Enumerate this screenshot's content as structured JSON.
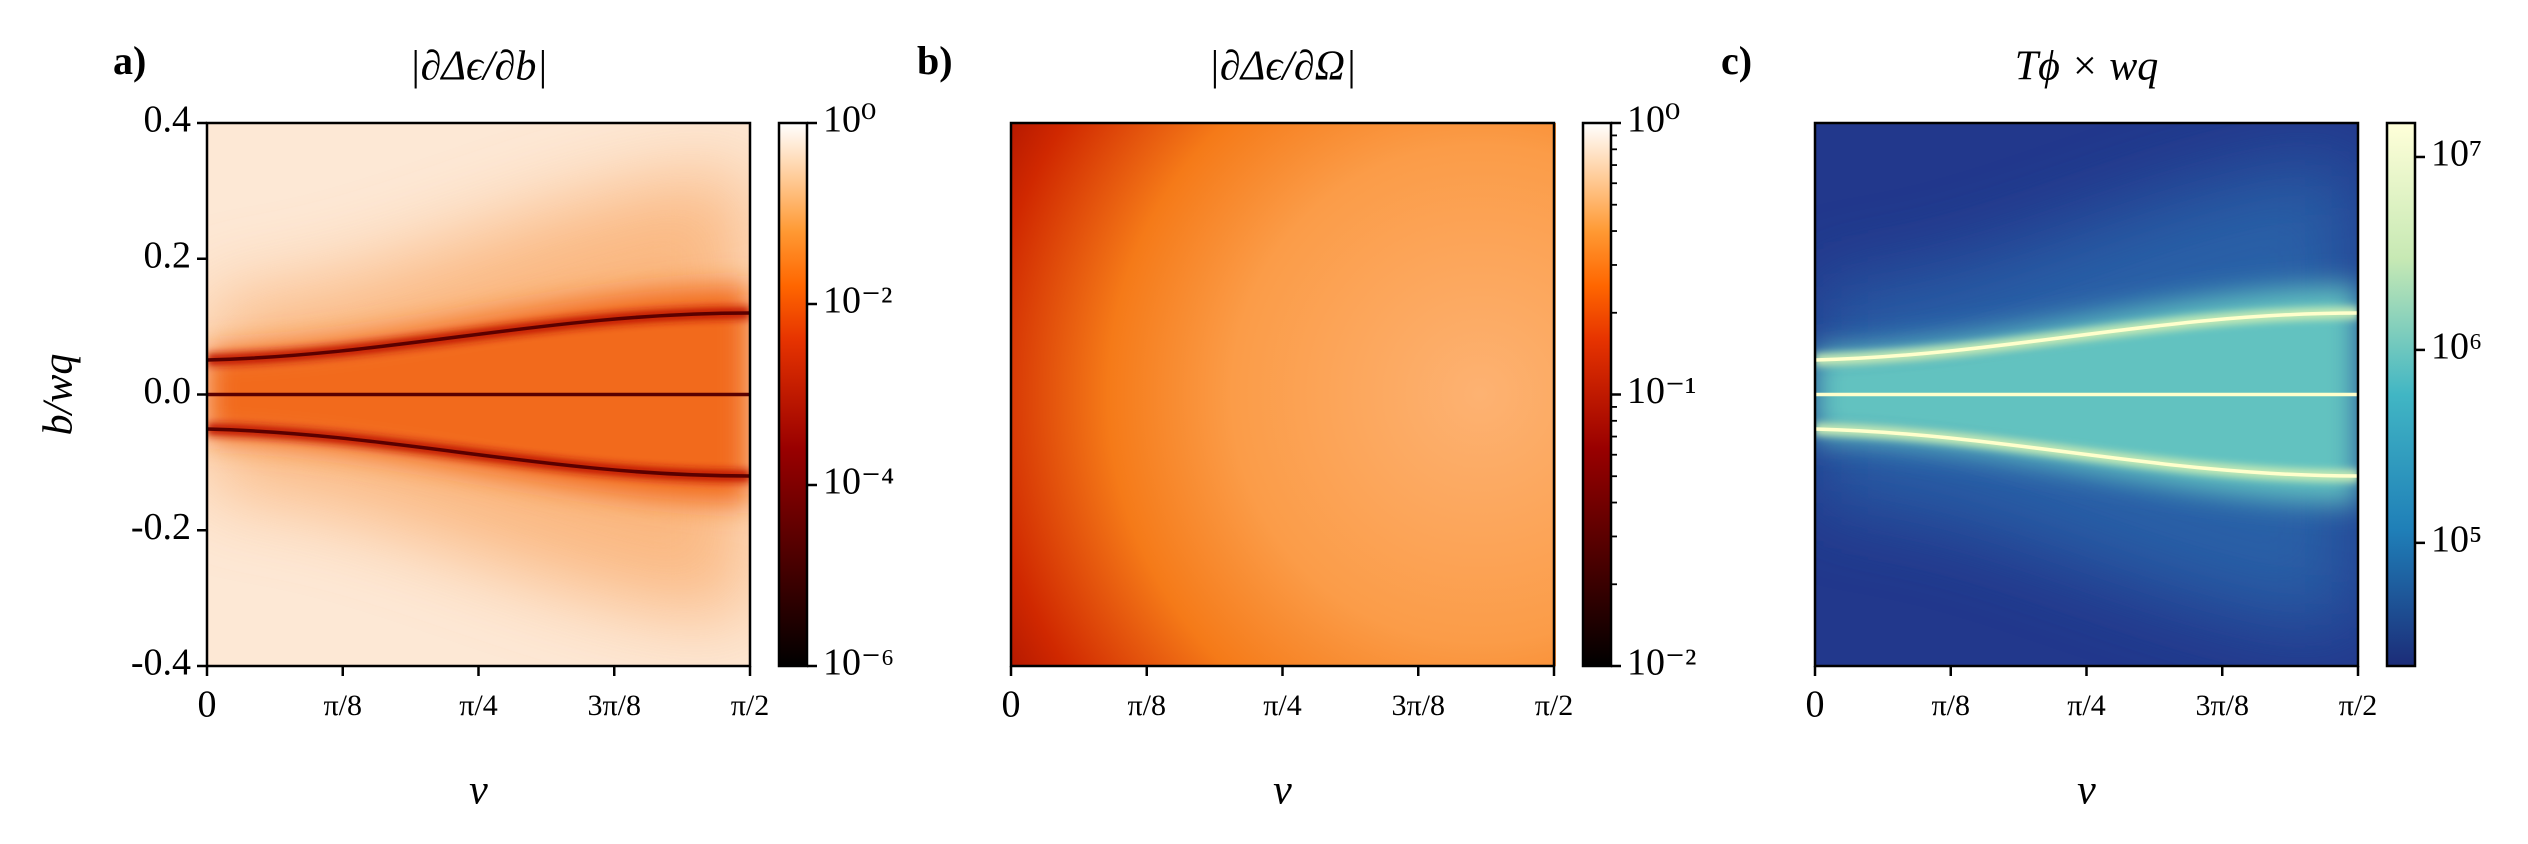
{
  "chart_data": [
    {
      "type": "heatmap",
      "panel": "a)",
      "title": "|∂Δϵ/∂b|",
      "xlabel": "ν",
      "ylabel": "b/wq",
      "xlim": [
        0,
        1.5708
      ],
      "xticks": [
        0,
        {
          "value": 0.3927,
          "label": "π/8"
        },
        {
          "value": 0.7854,
          "label": "π/4"
        },
        {
          "value": 1.1781,
          "label": "3π/8"
        },
        {
          "value": 1.5708,
          "label": "π/2"
        }
      ],
      "ylim": [
        -0.4,
        0.4
      ],
      "yticks": [
        0.4,
        0.2,
        {
          "value": 0,
          "label": "0.0"
        },
        -0.2,
        -0.4
      ],
      "colormap": "gist_heat",
      "colorbar": {
        "log": true,
        "lim": [
          1e-06,
          1
        ],
        "ticks": [
          {
            "value": 1,
            "label": "10⁰"
          },
          {
            "value": 0.01,
            "label": "10⁻²"
          },
          {
            "value": 0.0001,
            "label": "10⁻⁴"
          },
          {
            "value": 1e-06,
            "label": "10⁻⁶"
          }
        ]
      }
    },
    {
      "type": "heatmap",
      "panel": "b)",
      "title": "|∂Δϵ/∂Ω|",
      "xlabel": "ν",
      "xlim": [
        0,
        1.5708
      ],
      "xticks": [
        0,
        {
          "value": 0.3927,
          "label": "π/8"
        },
        {
          "value": 0.7854,
          "label": "π/4"
        },
        {
          "value": 1.1781,
          "label": "3π/8"
        },
        {
          "value": 1.5708,
          "label": "π/2"
        }
      ],
      "colormap": "gist_heat",
      "colorbar": {
        "log": true,
        "lim": [
          0.01,
          1
        ],
        "ticks": [
          {
            "value": 1,
            "label": "10⁰"
          },
          {
            "value": 0.1,
            "label": "10⁻¹"
          },
          {
            "value": 0.01,
            "label": "10⁻²"
          }
        ],
        "minor_ticks": [
          0.02,
          0.03,
          0.04,
          0.05,
          0.06,
          0.07,
          0.08,
          0.09,
          0.2,
          0.3,
          0.4,
          0.5,
          0.6,
          0.7,
          0.8,
          0.9
        ]
      }
    },
    {
      "type": "heatmap",
      "panel": "c)",
      "title": "Tϕ × wq",
      "xlabel": "ν",
      "xlim": [
        0,
        1.5708
      ],
      "xticks": [
        0,
        {
          "value": 0.3927,
          "label": "π/8"
        },
        {
          "value": 0.7854,
          "label": "π/4"
        },
        {
          "value": 1.1781,
          "label": "3π/8"
        },
        {
          "value": 1.5708,
          "label": "π/2"
        }
      ],
      "colormap": "YlGnBu_r",
      "colorbar": {
        "log": true,
        "lim": [
          23000,
          15000000
        ],
        "ticks": [
          {
            "value": 10000000,
            "label": "10⁷"
          },
          {
            "value": 1000000,
            "label": "10⁶"
          },
          {
            "value": 100000,
            "label": "10⁵"
          }
        ]
      }
    }
  ]
}
